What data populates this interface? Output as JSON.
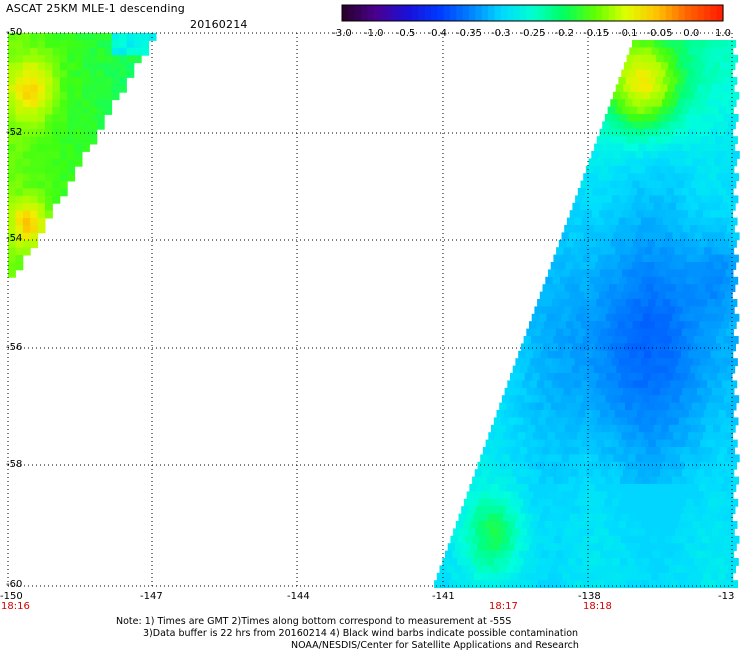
{
  "header": {
    "title": "ASCAT 25KM MLE-1 descending",
    "date": "20160214"
  },
  "colorbar": {
    "labels": [
      "-3.0",
      "-1.0",
      "-0.5",
      "-0.4",
      "-0.35",
      "-0.3",
      "-0.25",
      "-0.2",
      "-0.15",
      "-0.1",
      "-0.05",
      "0.0",
      "1.0"
    ],
    "colors": [
      "#2a0030",
      "#4a0090",
      "#1a10d8",
      "#0038ff",
      "#0080ff",
      "#00d8ff",
      "#00ffd0",
      "#00ff60",
      "#60ff00",
      "#e0ff00",
      "#ffc000",
      "#ff6000",
      "#ff2000"
    ]
  },
  "map": {
    "lat_labels": [
      "-50",
      "-52",
      "-54",
      "-56",
      "-58",
      "-60"
    ],
    "lon_labels": [
      "-150",
      "-147",
      "-144",
      "-141",
      "-138",
      "-13"
    ],
    "time_labels": [
      {
        "text": "18:16",
        "lon": "-150"
      },
      {
        "text": "18:17",
        "lon": "-139.5"
      },
      {
        "text": "18:18",
        "lon": "-138"
      }
    ],
    "grid_style": "dotted"
  },
  "notes": {
    "line1": "Note: 1) Times are GMT 2)Times along bottom correspond to measurement at -55S",
    "line2": "3)Data buffer is 22 hrs from 20160214 4) Black wind barbs indicate possible contamination",
    "line3": "NOAA/NESDIS/Center for Satellite Applications and Research"
  }
}
